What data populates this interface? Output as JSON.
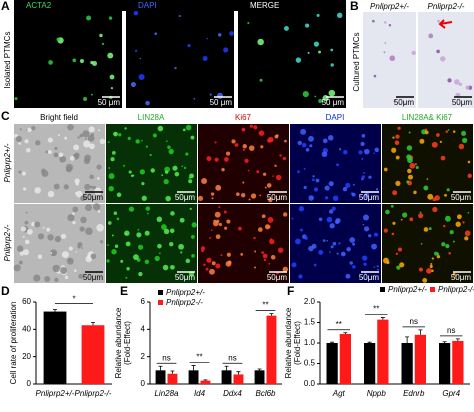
{
  "panels": {
    "A": {
      "label": "A",
      "headers": [
        "ACTA2",
        "DAPI",
        "MERGE"
      ],
      "side": "Isolated PTMCs",
      "scale": "50 μm"
    },
    "B": {
      "label": "B",
      "headers": [
        "Pnliprp2+/-",
        "Pnliprp2-/-"
      ],
      "side": "Cultured PTMCs",
      "scale": "50μm"
    },
    "C": {
      "label": "C",
      "headers": [
        "Bright field",
        "LIN28A",
        "Ki67",
        "DAPI",
        "LIN28A& Ki67"
      ],
      "rows": [
        "Pnliprp2+/-",
        "Pnliprp2-/-"
      ],
      "scale": "50μm"
    }
  },
  "chart_data": [
    {
      "type": "bar",
      "label": "D",
      "ylabel": [
        "Cell rate of proliferation"
      ],
      "categories": [
        "Pnliprp2+/-",
        "Pnliprp2-/-"
      ],
      "values": [
        53,
        43
      ],
      "errors": [
        1.5,
        2
      ],
      "colors": [
        "#000000",
        "#ff1a1a"
      ],
      "ylim": [
        0,
        60
      ],
      "yticks": [
        0,
        20,
        40,
        60
      ],
      "annotations": [
        "*"
      ]
    },
    {
      "type": "grouped-bar",
      "label": "E",
      "ylabel": [
        "Relative abundance",
        "(Fold-Effect)"
      ],
      "categories": [
        "Lin28a",
        "Id4",
        "Ddx4",
        "Bcl6b"
      ],
      "series": [
        {
          "name": "Pnliprp2+/-",
          "color": "#000000",
          "values": [
            1.0,
            1.0,
            1.0,
            1.0
          ],
          "errors": [
            0.3,
            0.35,
            0.3,
            0.1
          ]
        },
        {
          "name": "Pnliprp2-/-",
          "color": "#ff1a1a",
          "values": [
            0.75,
            0.25,
            0.7,
            5.0
          ],
          "errors": [
            0.2,
            0.05,
            0.2,
            0.15
          ]
        }
      ],
      "ylim": [
        0,
        6
      ],
      "yticks": [
        0,
        2,
        4,
        6
      ],
      "annotations": [
        "ns",
        "**",
        "ns",
        "**"
      ],
      "legend": "upper left"
    },
    {
      "type": "grouped-bar",
      "label": "F",
      "ylabel": [
        "Relative abundance",
        "(Fold-Effect)"
      ],
      "categories": [
        "Agt",
        "Nppb",
        "Ednrb",
        "Gpr4"
      ],
      "series": [
        {
          "name": "Pnliprp2+/-",
          "color": "#000000",
          "values": [
            1.0,
            1.0,
            1.0,
            1.0
          ],
          "errors": [
            0.02,
            0.02,
            0.15,
            0.03
          ]
        },
        {
          "name": "Pnliprp2-/-",
          "color": "#ff1a1a",
          "values": [
            1.22,
            1.57,
            1.2,
            1.05
          ],
          "errors": [
            0.03,
            0.05,
            0.12,
            0.05
          ]
        }
      ],
      "ylim": [
        0,
        2
      ],
      "yticks": [
        {
          "value": 0,
          "label": "0.0"
        },
        {
          "value": 0.5,
          "label": "0.5"
        },
        {
          "value": 1,
          "label": "1.0"
        },
        {
          "value": 1.5,
          "label": "1.5"
        },
        {
          "value": 2,
          "label": "2.0"
        }
      ],
      "annotations": [
        "**",
        "**",
        "ns",
        "ns"
      ],
      "legend": "upper right"
    }
  ]
}
